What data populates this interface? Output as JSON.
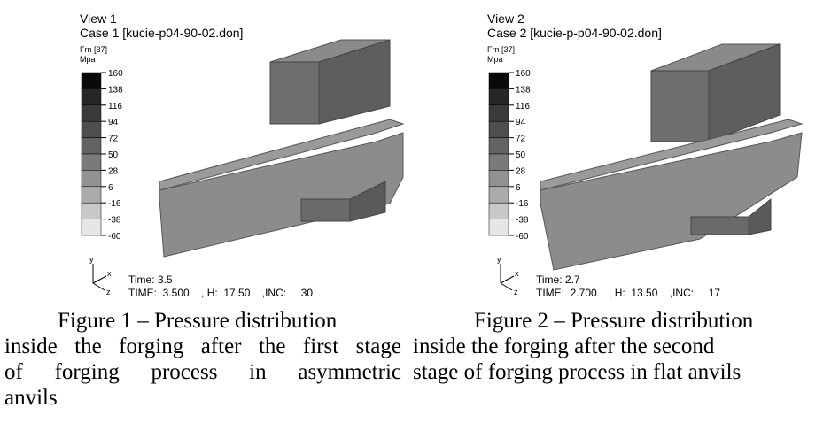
{
  "figures": [
    {
      "view": "View 1",
      "case": "Case 1  [kucie-p04-90-02.don]",
      "legend_title": [
        "Frn [37]",
        "Mpa"
      ],
      "legend_values": [
        160,
        138,
        116,
        94,
        72,
        50,
        28,
        6,
        -16,
        -38,
        -60
      ],
      "axes": [
        "y",
        "x",
        "z"
      ],
      "time": "Time: 3.5",
      "time_line": "TIME:  3.500    , H:  17.50    ,INC:     30",
      "caption_lines": [
        "Figure 1 – Pressure distribution",
        "inside the forging after the first stage",
        "of forging process in asymmetric",
        "anvils"
      ]
    },
    {
      "view": "View 2",
      "case": "Case 2  [kucie-p-p04-90-02.don]",
      "legend_title": [
        "Frn [37]",
        "Mpa"
      ],
      "legend_values": [
        160,
        138,
        116,
        94,
        72,
        50,
        28,
        6,
        -16,
        -38,
        -60
      ],
      "axes": [
        "y",
        "x",
        "z"
      ],
      "time": "Time: 2.7",
      "time_line": "TIME:  2.700    , H:  13.50    ,INC:     17",
      "caption_lines": [
        "Figure 2 – Pressure distribution",
        "inside the forging after the second",
        "stage of forging process in flat anvils"
      ]
    }
  ]
}
